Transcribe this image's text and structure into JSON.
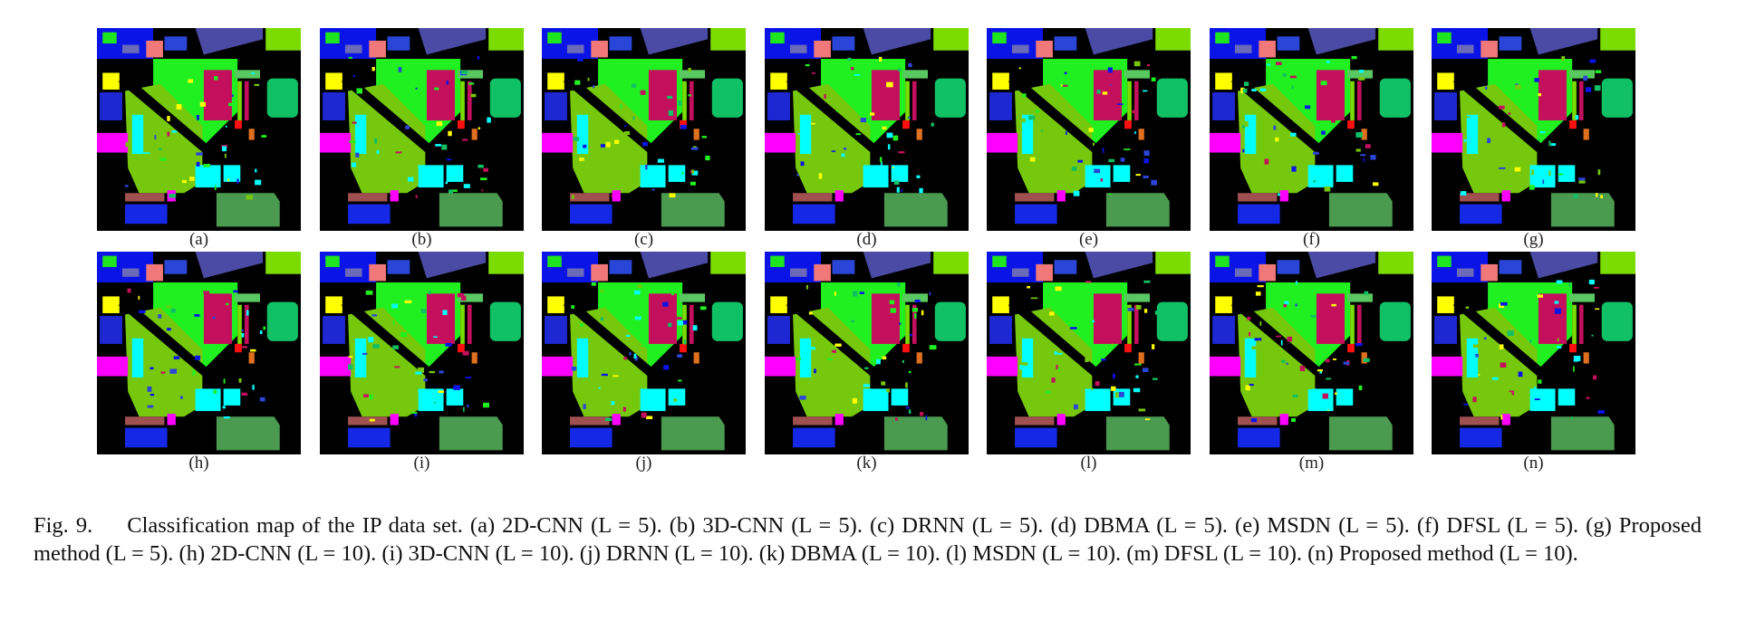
{
  "figure": {
    "panels": [
      {
        "label": "(a)"
      },
      {
        "label": "(b)"
      },
      {
        "label": "(c)"
      },
      {
        "label": "(d)"
      },
      {
        "label": "(e)"
      },
      {
        "label": "(f)"
      },
      {
        "label": "(g)"
      },
      {
        "label": "(h)"
      },
      {
        "label": "(i)"
      },
      {
        "label": "(j)"
      },
      {
        "label": "(k)"
      },
      {
        "label": "(l)"
      },
      {
        "label": "(m)"
      },
      {
        "label": "(n)"
      }
    ],
    "caption": {
      "number": "Fig. 9.",
      "text": "Classification map of the IP data set. (a) 2D-CNN (L = 5). (b) 3D-CNN (L = 5). (c) DRNN (L = 5). (d) DBMA (L = 5). (e) MSDN (L = 5). (f) DFSL (L = 5). (g) Proposed method (L = 5). (h) 2D-CNN (L = 10). (i) 3D-CNN (L = 10). (j) DRNN (L = 10). (k) DBMA (L = 10). (l) MSDN (L = 10). (m) DFSL (L = 10). (n) Proposed method (L = 10)."
    }
  }
}
